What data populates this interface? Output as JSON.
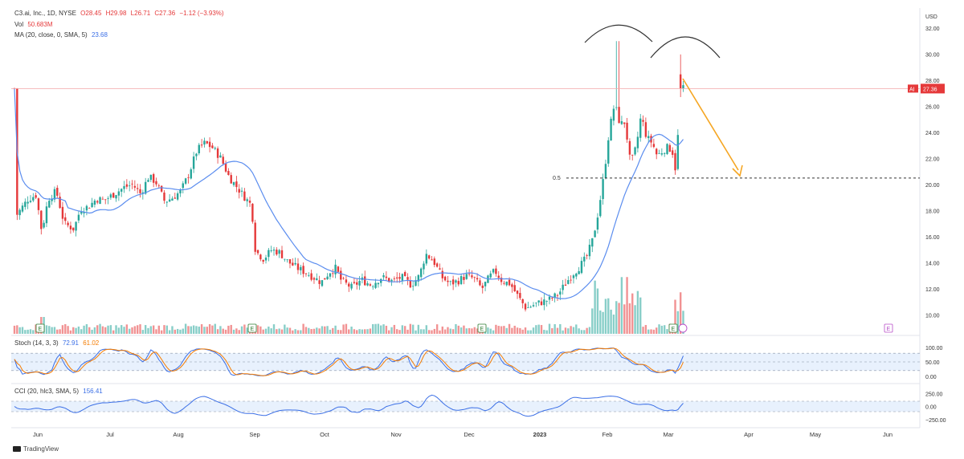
{
  "header": {
    "symbol": "C3.ai, Inc., 1D, NYSE",
    "open": "O28.45",
    "high": "H29.98",
    "low": "L26.71",
    "close": "C27.36",
    "change": "−1.12 (−3.93%)",
    "vol_label": "Vol",
    "vol_value": "50.683M",
    "ma_label": "MA (20, close, 0, SMA, 5)",
    "ma_value": "23.68"
  },
  "price_axis": {
    "currency": "USD",
    "ticks": [
      "32.00",
      "30.00",
      "28.00",
      "26.00",
      "24.00",
      "22.00",
      "20.00",
      "18.00",
      "16.00",
      "14.00",
      "12.00",
      "10.00"
    ],
    "last_price_tag": "AI",
    "last_price": "27.36"
  },
  "stoch": {
    "label": "Stoch (14, 3, 3)",
    "k_value": "72.91",
    "d_value": "61.02",
    "ticks": [
      "100.00",
      "50.00",
      "0.00"
    ]
  },
  "cci": {
    "label": "CCI (20, hlc3, SMA, 5)",
    "value": "156.41",
    "ticks": [
      "250.00",
      "0.00",
      "−250.00"
    ]
  },
  "x_axis": {
    "labels": [
      "Jun",
      "Jul",
      "Aug",
      "Sep",
      "Oct",
      "Nov",
      "Dec",
      "2023",
      "Feb",
      "Mar",
      "Apr",
      "May",
      "Jun"
    ]
  },
  "annotations": {
    "fib_label": "0.5",
    "fib_level": 20.5,
    "earnings_marker": "E"
  },
  "branding": {
    "logo_text": "TradingView"
  },
  "colors": {
    "up": "#26a69a",
    "down": "#e5393a",
    "ma_line": "#5b8def",
    "stoch_k": "#3b6fe6",
    "stoch_d": "#f57c00",
    "arrow": "#f5a623",
    "band_fill": "#e8f1fd"
  },
  "chart_data": {
    "type": "candlestick",
    "x_range": [
      "2022-05-20",
      "2023-06-08"
    ],
    "ylim": [
      8.5,
      32.5
    ],
    "monthly_closes": [
      {
        "month": "Jun",
        "close": 17.2
      },
      {
        "month": "Jul",
        "close": 18.6
      },
      {
        "month": "Aug",
        "close": 19.4
      },
      {
        "month": "Sep",
        "close": 14.2
      },
      {
        "month": "Oct",
        "close": 12.6
      },
      {
        "month": "Nov",
        "close": 13.2
      },
      {
        "month": "Dec",
        "close": 12.4
      },
      {
        "month": "Jan",
        "close": 16.0
      },
      {
        "month": "Feb",
        "close": 21.8
      },
      {
        "month": "Mar",
        "close": 27.36
      }
    ],
    "key_points": [
      {
        "label": "Aug high",
        "y": 23.5
      },
      {
        "label": "Feb high",
        "y": 31.0
      },
      {
        "label": "Mar high",
        "y": 29.98
      },
      {
        "label": "Dec low",
        "y": 10.2
      }
    ]
  }
}
